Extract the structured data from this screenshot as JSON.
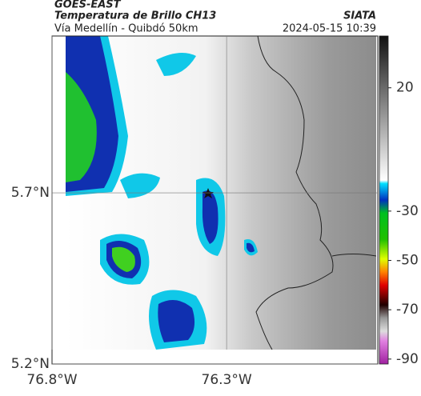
{
  "header": {
    "title": "GOES-EAST",
    "subtitle": "Temperatura de Brillo CH13",
    "source": "SIATA",
    "description": "Vía Medellín - Quibdó 50km",
    "datetime": "2024-05-15 10:39"
  },
  "map": {
    "xlim": [
      -76.8,
      -75.867
    ],
    "ylim": [
      5.2,
      6.158
    ],
    "xticks": [
      {
        "value": -76.8,
        "label": "76.8°W"
      },
      {
        "value": -76.3,
        "label": "76.3°W"
      }
    ],
    "yticks": [
      {
        "value": 5.7,
        "label": "5.7°N"
      },
      {
        "value": 5.2,
        "label": "5.2°N"
      }
    ]
  },
  "colorbar": {
    "lim": [
      -92,
      41
    ],
    "ticks": [
      20,
      -30,
      -50,
      -70,
      -90
    ]
  }
}
